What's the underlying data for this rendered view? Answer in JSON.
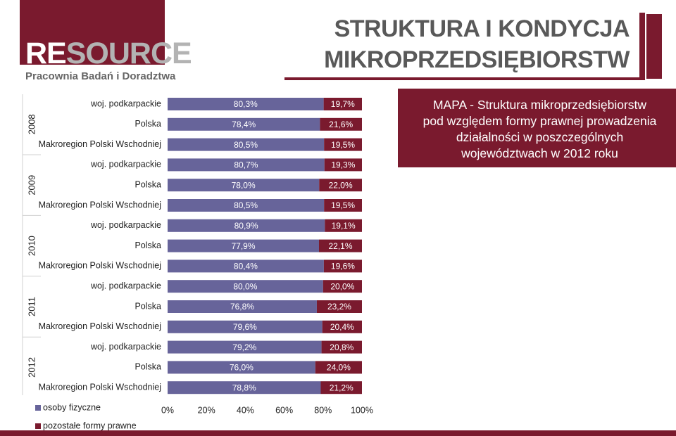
{
  "header": {
    "logo_prefix": "RE",
    "logo_suffix": "SOURCE",
    "logo_subtitle": "Pracownia Badań i Doradztwa",
    "title_line1": "STRUKTURA I KONDYCJA",
    "title_line2": "MIKROPRZEDSIĘBIORSTW"
  },
  "map_box": {
    "line1": "MAPA - Struktura mikroprzedsiębiorstw",
    "line2": "pod względem formy prawnej prowadzenia",
    "line3": "działalności w poszczególnych",
    "line4": "województwach w 2012 roku"
  },
  "chart_data": {
    "type": "bar",
    "orientation": "horizontal",
    "stacked": true,
    "percent_stacked": true,
    "groups": [
      {
        "year": "2008",
        "rows": [
          {
            "label": "woj. podkarpackie",
            "values": [
              80.3,
              19.7
            ],
            "labels": [
              "80,3%",
              "19,7%"
            ]
          },
          {
            "label": "Polska",
            "values": [
              78.4,
              21.6
            ],
            "labels": [
              "78,4%",
              "21,6%"
            ]
          },
          {
            "label": "Makroregion Polski Wschodniej",
            "values": [
              80.5,
              19.5
            ],
            "labels": [
              "80,5%",
              "19,5%"
            ]
          }
        ]
      },
      {
        "year": "2009",
        "rows": [
          {
            "label": "woj. podkarpackie",
            "values": [
              80.7,
              19.3
            ],
            "labels": [
              "80,7%",
              "19,3%"
            ]
          },
          {
            "label": "Polska",
            "values": [
              78.0,
              22.0
            ],
            "labels": [
              "78,0%",
              "22,0%"
            ]
          },
          {
            "label": "Makroregion Polski Wschodniej",
            "values": [
              80.5,
              19.5
            ],
            "labels": [
              "80,5%",
              "19,5%"
            ]
          }
        ]
      },
      {
        "year": "2010",
        "rows": [
          {
            "label": "woj. podkarpackie",
            "values": [
              80.9,
              19.1
            ],
            "labels": [
              "80,9%",
              "19,1%"
            ]
          },
          {
            "label": "Polska",
            "values": [
              77.9,
              22.1
            ],
            "labels": [
              "77,9%",
              "22,1%"
            ]
          },
          {
            "label": "Makroregion Polski Wschodniej",
            "values": [
              80.4,
              19.6
            ],
            "labels": [
              "80,4%",
              "19,6%"
            ]
          }
        ]
      },
      {
        "year": "2011",
        "rows": [
          {
            "label": "woj. podkarpackie",
            "values": [
              80.0,
              20.0
            ],
            "labels": [
              "80,0%",
              "20,0%"
            ]
          },
          {
            "label": "Polska",
            "values": [
              76.8,
              23.2
            ],
            "labels": [
              "76,8%",
              "23,2%"
            ]
          },
          {
            "label": "Makroregion Polski Wschodniej",
            "values": [
              79.6,
              20.4
            ],
            "labels": [
              "79,6%",
              "20,4%"
            ]
          }
        ]
      },
      {
        "year": "2012",
        "rows": [
          {
            "label": "woj. podkarpackie",
            "values": [
              79.2,
              20.8
            ],
            "labels": [
              "79,2%",
              "20,8%"
            ]
          },
          {
            "label": "Polska",
            "values": [
              76.0,
              24.0
            ],
            "labels": [
              "76,0%",
              "24,0%"
            ]
          },
          {
            "label": "Makroregion Polski Wschodniej",
            "values": [
              78.8,
              21.2
            ],
            "labels": [
              "78,8%",
              "21,2%"
            ]
          }
        ]
      }
    ],
    "series": [
      {
        "name": "osoby fizyczne",
        "color": "#67649a"
      },
      {
        "name": "pozostałe formy prawne",
        "color": "#7a1a2e"
      }
    ],
    "xlim": [
      0,
      100
    ],
    "xticks": [
      "0%",
      "20%",
      "40%",
      "60%",
      "80%",
      "100%"
    ],
    "legend_position": "bottom-left",
    "grid": false
  }
}
